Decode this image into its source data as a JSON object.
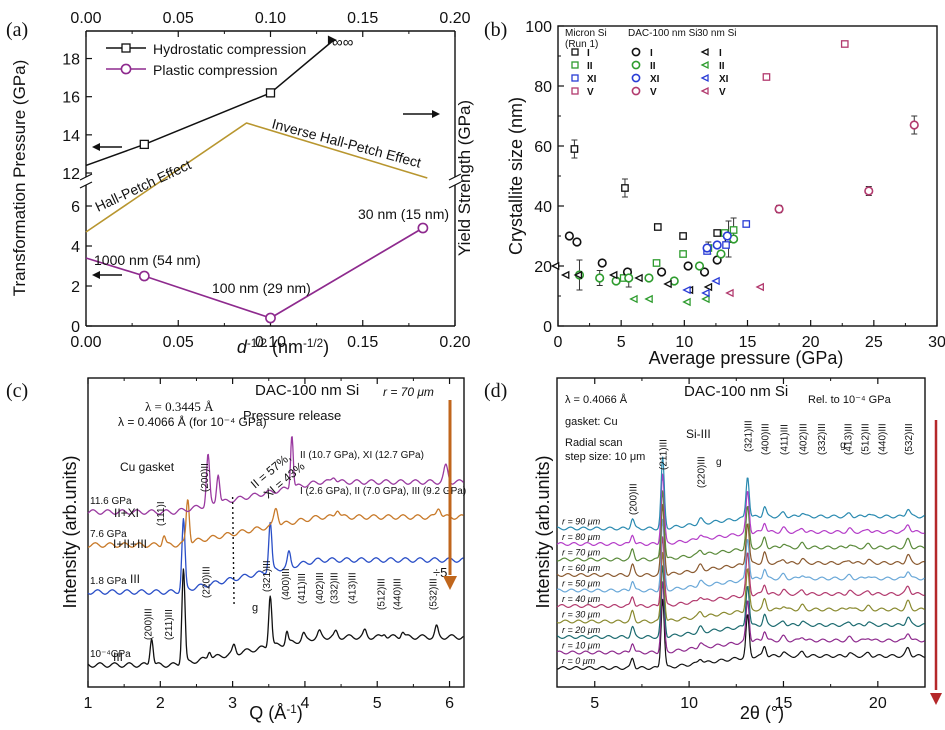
{
  "chart_data": [
    {
      "panel": "(a)",
      "type": "line",
      "xlabel": "d",
      "xlabel_sup": "-1/2",
      "xlabel_unit": "(nm",
      "xlabel_unit_sup": "-1/2",
      "xlabel_close": ")",
      "ylabel_left": "Transformation Pressure (GPa)",
      "ylabel_right": "Yield Strength (GPa)",
      "xlim": [
        0.0,
        0.2
      ],
      "x_ticks": [
        "0.00",
        "0.05",
        "0.10",
        "0.15",
        "0.20"
      ],
      "x_tick_values": [
        0,
        0.05,
        0.1,
        0.15,
        0.2
      ],
      "y_ticks_upper": [
        "12",
        "14",
        "16",
        "18"
      ],
      "y_tick_values_upper": [
        12,
        14,
        16,
        18
      ],
      "y_ticks_lower": [
        "0",
        "2",
        "4",
        "6"
      ],
      "y_tick_values_lower": [
        0,
        2,
        4,
        6
      ],
      "series": [
        {
          "name": "Hydrostatic compression",
          "color": "#111111",
          "marker": "square",
          "x": [
            0.0,
            0.0316,
            0.1
          ],
          "y": [
            12.4,
            13.5,
            16.2
          ]
        },
        {
          "name": "Plastic compression",
          "color": "#8e2a8e",
          "marker": "circle",
          "x": [
            0.0,
            0.0316,
            0.1,
            0.1826
          ],
          "y": [
            3.4,
            2.5,
            0.4,
            4.9
          ]
        },
        {
          "name": "Yield strength",
          "color": "#b8962f",
          "marker": "none",
          "x": [
            0.0,
            0.087,
            0.185
          ],
          "y": [
            4.7,
            14.4,
            11.7
          ]
        }
      ],
      "annotations": {
        "hall_petch": "Hall-Petch Effect",
        "inverse_hall_petch": "Inverse Hall-Petch Effect",
        "label_1000": "1000 nm (54 nm)",
        "label_100": "100 nm (29 nm)",
        "label_30": "30 nm (15 nm)",
        "infinity": "∞"
      }
    },
    {
      "panel": "(b)",
      "type": "scatter",
      "xlabel": "Average pressure (GPa)",
      "ylabel": "Crystallite size (nm)",
      "xlim": [
        0,
        30
      ],
      "ylim": [
        0,
        100
      ],
      "x_ticks": [
        "0",
        "5",
        "10",
        "15",
        "20",
        "25",
        "30"
      ],
      "x_tick_values": [
        0,
        5,
        10,
        15,
        20,
        25,
        30
      ],
      "y_ticks": [
        "0",
        "20",
        "40",
        "60",
        "80",
        "100"
      ],
      "y_tick_values": [
        0,
        20,
        40,
        60,
        80,
        100
      ],
      "legend_groups": [
        {
          "title": "Micron Si",
          "subtitle": "(Run 1)",
          "marker": "square"
        },
        {
          "title": "DAC-100 nm Si",
          "subtitle": "",
          "marker": "circle"
        },
        {
          "title": "30 nm Si",
          "subtitle": "",
          "marker": "triangle"
        }
      ],
      "phases": [
        {
          "name": "I",
          "color": "#111111"
        },
        {
          "name": "II",
          "color": "#2e9c2e"
        },
        {
          "name": "XI",
          "color": "#2a3dd6"
        },
        {
          "name": "V",
          "color": "#b23a6e"
        }
      ],
      "series": [
        {
          "group": "Micron Si",
          "phase": "I",
          "marker": "square",
          "color": "#111111",
          "x": [
            1.3,
            5.3,
            7.9,
            9.9,
            12.6,
            13.5
          ],
          "y": [
            59,
            46,
            33,
            30,
            31,
            29
          ]
        },
        {
          "group": "Micron Si",
          "phase": "II",
          "marker": "square",
          "color": "#2e9c2e",
          "x": [
            5.2,
            7.8,
            9.9,
            11.9,
            13.2,
            13.9
          ],
          "y": [
            16,
            21,
            24,
            26,
            31,
            32
          ]
        },
        {
          "group": "Micron Si",
          "phase": "XI",
          "marker": "square",
          "color": "#2a3dd6",
          "x": [
            11.8,
            13.3,
            14.9
          ],
          "y": [
            25,
            27,
            34
          ]
        },
        {
          "group": "Micron Si",
          "phase": "V",
          "marker": "square",
          "color": "#b23a6e",
          "x": [
            16.5,
            22.7
          ],
          "y": [
            83,
            94
          ]
        },
        {
          "group": "DAC-100 nm Si",
          "phase": "I",
          "marker": "circle",
          "color": "#111111",
          "x": [
            0.9,
            1.5,
            3.5,
            5.5,
            8.2,
            10.3,
            11.6,
            12.6
          ],
          "y": [
            30,
            28,
            21,
            18,
            18,
            20,
            18,
            22
          ]
        },
        {
          "group": "DAC-100 nm Si",
          "phase": "II",
          "marker": "circle",
          "color": "#2e9c2e",
          "x": [
            1.7,
            3.3,
            4.6,
            5.6,
            7.2,
            9.2,
            11.2,
            12.9,
            13.9
          ],
          "y": [
            17,
            16,
            15,
            16,
            16,
            15,
            20,
            24,
            29
          ]
        },
        {
          "group": "DAC-100 nm Si",
          "phase": "XI",
          "marker": "circle",
          "color": "#2a3dd6",
          "x": [
            11.8,
            12.6,
            13.4
          ],
          "y": [
            26,
            27,
            30
          ]
        },
        {
          "group": "DAC-100 nm Si",
          "phase": "V",
          "marker": "circle",
          "color": "#b23a6e",
          "x": [
            17.5,
            24.6,
            28.2
          ],
          "y": [
            39,
            45,
            67
          ]
        },
        {
          "group": "30 nm Si",
          "phase": "I",
          "marker": "triangle",
          "color": "#111111",
          "x": [
            -0.2,
            0.6,
            1.6,
            4.4,
            6.4,
            8.7,
            10.4,
            11.9
          ],
          "y": [
            20,
            17,
            17,
            17,
            16,
            14,
            12,
            13
          ]
        },
        {
          "group": "30 nm Si",
          "phase": "II",
          "marker": "triangle",
          "color": "#2e9c2e",
          "x": [
            6.0,
            7.2,
            10.2,
            11.7
          ],
          "y": [
            9,
            9,
            8,
            9
          ]
        },
        {
          "group": "30 nm Si",
          "phase": "XI",
          "marker": "triangle",
          "color": "#2a3dd6",
          "x": [
            10.2,
            11.7,
            12.5
          ],
          "y": [
            12,
            11,
            15
          ]
        },
        {
          "group": "30 nm Si",
          "phase": "V",
          "marker": "triangle",
          "color": "#b23a6e",
          "x": [
            13.6,
            16.0
          ],
          "y": [
            11,
            13
          ]
        }
      ]
    },
    {
      "panel": "(c)",
      "type": "line",
      "title": "DAC-100 nm Si",
      "xlabel": "Q",
      "xlabel_unit": "(Å",
      "xlabel_unit_sup": "-1",
      "xlabel_close": ")",
      "ylabel": "Intensity (arb.units)",
      "xlim": [
        1,
        6.2
      ],
      "x_ticks": [
        "1",
        "2",
        "3",
        "4",
        "5",
        "6"
      ],
      "x_tick_values": [
        1,
        2,
        3,
        4,
        5,
        6
      ],
      "traces": [
        {
          "label": "10⁻⁴GPa",
          "phase": "III",
          "color": "#111111"
        },
        {
          "label": "1.8 GPa",
          "phase": "III",
          "color": "#2a4fc7"
        },
        {
          "label": "7.6 GPa",
          "phase": "I+II+III",
          "color": "#c87a2a"
        },
        {
          "label": "11.6 GPa",
          "phase": "II+XI",
          "color": "#9a3aa0"
        }
      ],
      "annotations": {
        "wavelength1": "λ = 0.3445 Å",
        "wavelength2": "λ = 0.4066 Å (for 10⁻⁴ GPa)",
        "gasket": "Cu gasket",
        "release": "Pressure release",
        "radius": "r = 70 μm",
        "fraction1": "II = 57%,",
        "fraction2": "XI = 43%",
        "purple_note": "II (10.7 GPa), XI (12.7 GPa)",
        "orange_note": "I (2.6 GPa), II (7.0 GPa), III (9.2 GPa)",
        "divide": "÷5",
        "g": "g"
      },
      "peaks": [
        "(200)III",
        "(211)III",
        "(220)III",
        "(321)III",
        "(400)III",
        "(411)III",
        "(402)III",
        "(332)III",
        "(413)III",
        "(512)III",
        "(440)III",
        "(532)III",
        "(111)I",
        "(200)II"
      ]
    },
    {
      "panel": "(d)",
      "type": "line",
      "title": "DAC-100 nm Si",
      "xlabel": "2θ (°)",
      "ylabel": "Intensity (arb.units)",
      "xlim": [
        3,
        22.5
      ],
      "x_ticks": [
        "5",
        "10",
        "15",
        "20"
      ],
      "x_tick_values": [
        5,
        10,
        15,
        20
      ],
      "annotations": {
        "wavelength": "λ = 0.4066 Å",
        "gasket": "gasket: Cu",
        "scan1": "Radial scan",
        "scan2": "step size: 10 μm",
        "rel": "Rel. to 10⁻⁴ GPa",
        "phase": "Si-III",
        "g": "g"
      },
      "traces": [
        {
          "label": "r = 0 μm",
          "color": "#111111"
        },
        {
          "label": "r = 10 μm",
          "color": "#8e2a8e"
        },
        {
          "label": "r = 20 μm",
          "color": "#1c6b70"
        },
        {
          "label": "r = 30 μm",
          "color": "#8a8a30"
        },
        {
          "label": "r = 40 μm",
          "color": "#b23a6e"
        },
        {
          "label": "r = 50 μm",
          "color": "#6aa8d8"
        },
        {
          "label": "r = 60 μm",
          "color": "#8a5a30"
        },
        {
          "label": "r = 70 μm",
          "color": "#5a8a3a"
        },
        {
          "label": "r = 80 μm",
          "color": "#b43cc8"
        },
        {
          "label": "r = 90 μm",
          "color": "#2a8ab0"
        }
      ],
      "peaks": [
        "(200)III",
        "(211)III",
        "(220)III",
        "(321)III",
        "(400)III",
        "(411)III",
        "(402)III",
        "(332)III",
        "(413)III",
        "(512)III",
        "(440)III",
        "(532)III"
      ]
    }
  ],
  "panel_labels": [
    "(a)",
    "(b)",
    "(c)",
    "(d)"
  ],
  "colors": {
    "arrow": "#c0661c",
    "arrow_d": "#b5282a"
  }
}
